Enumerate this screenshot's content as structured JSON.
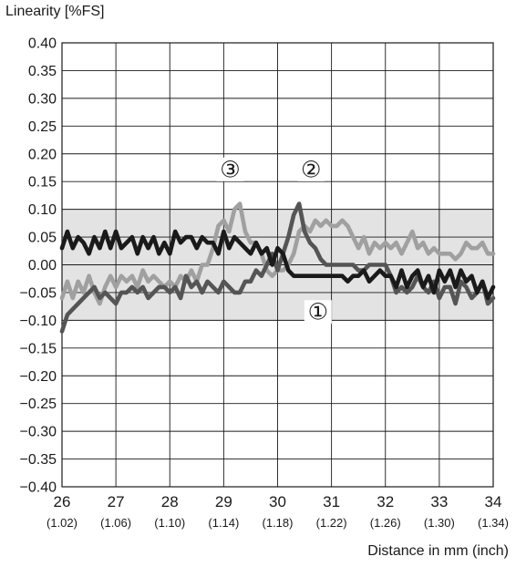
{
  "chart_data": {
    "type": "line",
    "ylabel": "Linearity [%FS]",
    "xlabel": "Distance in mm (inch)",
    "xlim": [
      26,
      34
    ],
    "ylim": [
      -0.4,
      0.4
    ],
    "x_ticks": [
      26,
      27,
      28,
      29,
      30,
      31,
      32,
      33,
      34
    ],
    "x_ticks_inch": [
      "(1.02)",
      "(1.06)",
      "(1.10)",
      "(1.14)",
      "(1.18)",
      "(1.22)",
      "(1.26)",
      "(1.30)",
      "(1.34)"
    ],
    "y_ticks": [
      "0.40",
      "0.35",
      "0.30",
      "0.25",
      "0.20",
      "0.15",
      "0.10",
      "0.05",
      "0.00",
      "-0.05",
      "-0.10",
      "-0.15",
      "-0.20",
      "-0.25",
      "-0.30",
      "-0.35",
      "-0.40"
    ],
    "grid": true,
    "tolerance_band": [
      -0.1,
      0.1
    ],
    "series": [
      {
        "name": "①",
        "color": "#1a1a1a",
        "x": [
          26.0,
          26.1,
          26.2,
          26.3,
          26.4,
          26.5,
          26.6,
          26.7,
          26.8,
          26.9,
          27.0,
          27.1,
          27.2,
          27.3,
          27.4,
          27.5,
          27.6,
          27.7,
          27.8,
          27.9,
          28.0,
          28.1,
          28.2,
          28.3,
          28.4,
          28.5,
          28.6,
          28.7,
          28.8,
          28.9,
          29.0,
          29.1,
          29.2,
          29.3,
          29.4,
          29.5,
          29.6,
          29.7,
          29.8,
          29.9,
          30.0,
          30.1,
          30.2,
          30.3,
          30.4,
          30.5,
          30.6,
          30.7,
          30.8,
          30.9,
          31.0,
          31.1,
          31.2,
          31.3,
          31.4,
          31.5,
          31.6,
          31.7,
          31.8,
          31.9,
          32.0,
          32.1,
          32.2,
          32.3,
          32.4,
          32.5,
          32.6,
          32.7,
          32.8,
          32.9,
          33.0,
          33.1,
          33.2,
          33.3,
          33.4,
          33.5,
          33.6,
          33.7,
          33.8,
          33.9,
          34.0
        ],
        "y": [
          0.03,
          0.06,
          0.03,
          0.05,
          0.04,
          0.02,
          0.05,
          0.03,
          0.06,
          0.03,
          0.06,
          0.03,
          0.04,
          0.05,
          0.02,
          0.05,
          0.03,
          0.05,
          0.02,
          0.04,
          0.02,
          0.06,
          0.04,
          0.05,
          0.05,
          0.03,
          0.05,
          0.04,
          0.04,
          0.02,
          0.06,
          0.03,
          0.05,
          0.04,
          0.03,
          0.02,
          0.04,
          0.02,
          0.03,
          0.0,
          0.03,
          0.02,
          -0.01,
          -0.02,
          -0.02,
          -0.02,
          -0.02,
          -0.02,
          -0.02,
          -0.02,
          -0.02,
          -0.02,
          -0.02,
          -0.03,
          -0.02,
          -0.02,
          -0.01,
          -0.03,
          -0.02,
          -0.01,
          -0.02,
          -0.02,
          -0.04,
          -0.01,
          -0.04,
          -0.02,
          -0.01,
          -0.04,
          -0.02,
          -0.05,
          -0.01,
          -0.03,
          -0.01,
          -0.04,
          -0.01,
          -0.03,
          -0.02,
          -0.05,
          -0.03,
          -0.06,
          -0.04
        ]
      },
      {
        "name": "②",
        "color": "#555555",
        "x": [
          26.0,
          26.1,
          26.2,
          26.3,
          26.4,
          26.5,
          26.6,
          26.7,
          26.8,
          26.9,
          27.0,
          27.1,
          27.2,
          27.3,
          27.4,
          27.5,
          27.6,
          27.7,
          27.8,
          27.9,
          28.0,
          28.1,
          28.2,
          28.3,
          28.4,
          28.5,
          28.6,
          28.7,
          28.8,
          28.9,
          29.0,
          29.1,
          29.2,
          29.3,
          29.4,
          29.5,
          29.6,
          29.7,
          29.8,
          29.9,
          30.0,
          30.1,
          30.2,
          30.3,
          30.4,
          30.5,
          30.6,
          30.7,
          30.8,
          30.9,
          31.0,
          31.1,
          31.2,
          31.3,
          31.4,
          31.5,
          31.6,
          31.7,
          31.8,
          31.9,
          32.0,
          32.1,
          32.2,
          32.3,
          32.4,
          32.5,
          32.6,
          32.7,
          32.8,
          32.9,
          33.0,
          33.1,
          33.2,
          33.3,
          33.4,
          33.5,
          33.6,
          33.7,
          33.8,
          33.9,
          34.0
        ],
        "y": [
          -0.12,
          -0.09,
          -0.08,
          -0.07,
          -0.06,
          -0.05,
          -0.04,
          -0.06,
          -0.05,
          -0.06,
          -0.07,
          -0.05,
          -0.05,
          -0.04,
          -0.05,
          -0.04,
          -0.06,
          -0.05,
          -0.04,
          -0.04,
          -0.05,
          -0.04,
          -0.06,
          -0.02,
          -0.04,
          -0.03,
          -0.05,
          -0.03,
          -0.04,
          -0.05,
          -0.03,
          -0.04,
          -0.05,
          -0.05,
          -0.03,
          -0.03,
          -0.01,
          -0.02,
          0.0,
          0.02,
          -0.01,
          0.02,
          0.05,
          0.09,
          0.11,
          0.06,
          0.04,
          0.03,
          0.01,
          0.0,
          0.0,
          0.0,
          0.0,
          0.0,
          0.0,
          -0.01,
          -0.01,
          0.0,
          0.0,
          0.0,
          0.0,
          -0.02,
          -0.05,
          -0.04,
          -0.05,
          -0.04,
          -0.02,
          -0.04,
          -0.05,
          -0.03,
          -0.06,
          -0.04,
          -0.04,
          -0.07,
          -0.03,
          -0.04,
          -0.06,
          -0.05,
          -0.03,
          -0.07,
          -0.06
        ]
      },
      {
        "name": "③",
        "color": "#a0a0a0",
        "x": [
          26.0,
          26.1,
          26.2,
          26.3,
          26.4,
          26.5,
          26.6,
          26.7,
          26.8,
          26.9,
          27.0,
          27.1,
          27.2,
          27.3,
          27.4,
          27.5,
          27.6,
          27.7,
          27.8,
          27.9,
          28.0,
          28.1,
          28.2,
          28.3,
          28.4,
          28.5,
          28.6,
          28.7,
          28.8,
          28.9,
          29.0,
          29.1,
          29.2,
          29.3,
          29.4,
          29.5,
          29.6,
          29.7,
          29.8,
          29.9,
          30.0,
          30.1,
          30.2,
          30.3,
          30.4,
          30.5,
          30.6,
          30.7,
          30.8,
          30.9,
          31.0,
          31.1,
          31.2,
          31.3,
          31.4,
          31.5,
          31.6,
          31.7,
          31.8,
          31.9,
          32.0,
          32.1,
          32.2,
          32.3,
          32.4,
          32.5,
          32.6,
          32.7,
          32.8,
          32.9,
          33.0,
          33.1,
          33.2,
          33.3,
          33.4,
          33.5,
          33.6,
          33.7,
          33.8,
          33.9,
          34.0
        ],
        "y": [
          -0.06,
          -0.03,
          -0.06,
          -0.03,
          -0.05,
          -0.02,
          -0.05,
          -0.07,
          -0.04,
          -0.02,
          -0.04,
          -0.02,
          -0.03,
          -0.02,
          -0.04,
          -0.01,
          -0.03,
          -0.02,
          -0.03,
          -0.04,
          -0.03,
          -0.04,
          -0.02,
          -0.03,
          -0.01,
          -0.03,
          0.0,
          0.0,
          0.03,
          0.07,
          0.08,
          0.06,
          0.1,
          0.11,
          0.06,
          0.04,
          0.04,
          0.02,
          -0.01,
          -0.02,
          -0.01,
          -0.01,
          0.0,
          0.02,
          0.06,
          0.07,
          0.06,
          0.08,
          0.07,
          0.08,
          0.07,
          0.07,
          0.08,
          0.07,
          0.05,
          0.03,
          0.05,
          0.02,
          0.04,
          0.03,
          0.04,
          0.03,
          0.04,
          0.02,
          0.04,
          0.06,
          0.03,
          0.04,
          0.02,
          0.03,
          0.02,
          0.02,
          0.02,
          0.01,
          0.02,
          0.04,
          0.03,
          0.03,
          0.04,
          0.02,
          0.02
        ]
      }
    ],
    "annotations": [
      {
        "label": "①",
        "x": 30.75,
        "y": -0.085
      },
      {
        "label": "②",
        "x": 30.62,
        "y": 0.172
      },
      {
        "label": "③",
        "x": 29.12,
        "y": 0.172
      }
    ]
  }
}
